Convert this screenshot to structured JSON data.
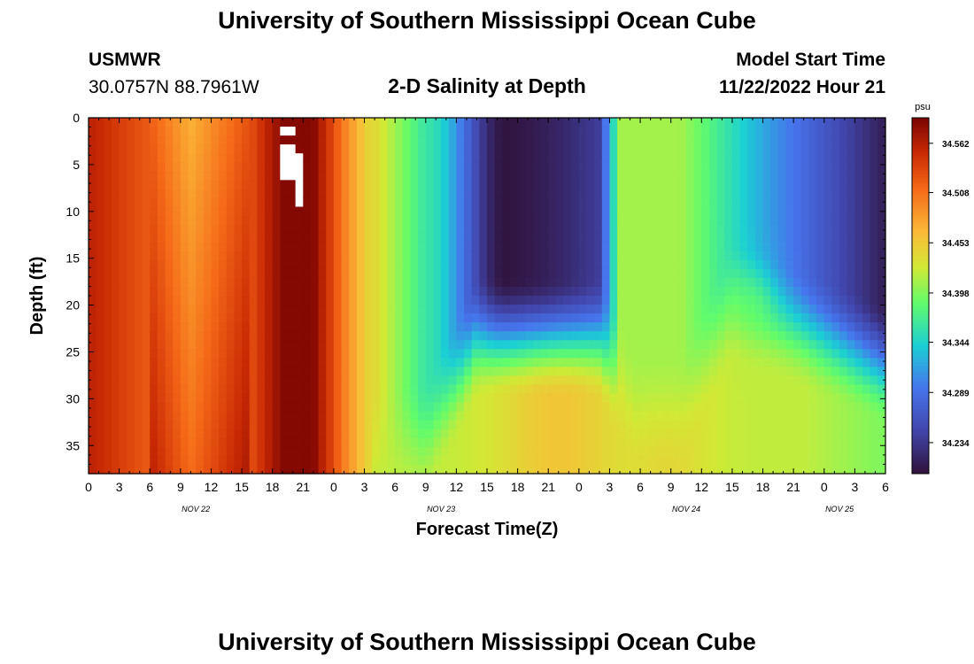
{
  "header": {
    "title": "University of Southern Mississippi Ocean Cube",
    "station": "USMWR",
    "coords": "30.0757N  88.7961W",
    "plot_title": "2-D Salinity at Depth",
    "model_start_label": "Model Start Time",
    "model_start_value": "11/22/2022 Hour 21"
  },
  "footer": {
    "title": "University of Southern Mississippi Ocean Cube"
  },
  "chart_data": {
    "type": "heatmap",
    "title": "2-D Salinity at Depth",
    "xlabel": "Forecast Time(Z)",
    "ylabel": "Depth (ft)",
    "xlim": [
      0,
      78
    ],
    "ylim": [
      38,
      0
    ],
    "x_ticks": [
      "0",
      "3",
      "6",
      "9",
      "12",
      "15",
      "18",
      "21",
      "0",
      "3",
      "6",
      "9",
      "12",
      "15",
      "18",
      "21",
      "0",
      "3",
      "6",
      "9",
      "12",
      "15",
      "18",
      "21",
      "0",
      "3",
      "6"
    ],
    "y_ticks": [
      0,
      5,
      10,
      15,
      20,
      25,
      30,
      35
    ],
    "date_labels": [
      "NOV 22",
      "NOV 23",
      "NOV 24",
      "NOV 25"
    ],
    "colorbar": {
      "unit": "psu",
      "ticks": [
        "34.562",
        "34.508",
        "34.453",
        "34.398",
        "34.344",
        "34.289",
        "34.234"
      ],
      "min": 34.2,
      "max": 34.59
    },
    "grid": false,
    "missing_values": "white cells near hour 19–20, depths 1–9 ft",
    "values_description": "salinity (psu) by forecast hour (x) and depth in ft (y)",
    "samples": [
      {
        "hour": 0,
        "depth": 0,
        "psu": 34.56
      },
      {
        "hour": 9,
        "depth": 10,
        "psu": 34.46
      },
      {
        "hour": 20,
        "depth": 20,
        "psu": 34.59
      },
      {
        "hour": 30,
        "depth": 20,
        "psu": 34.45
      },
      {
        "hour": 45,
        "depth": 5,
        "psu": 34.21
      },
      {
        "hour": 48,
        "depth": 36,
        "psu": 34.44
      },
      {
        "hour": 55,
        "depth": 25,
        "psu": 34.39
      },
      {
        "hour": 78,
        "depth": 5,
        "psu": 34.2
      }
    ]
  }
}
